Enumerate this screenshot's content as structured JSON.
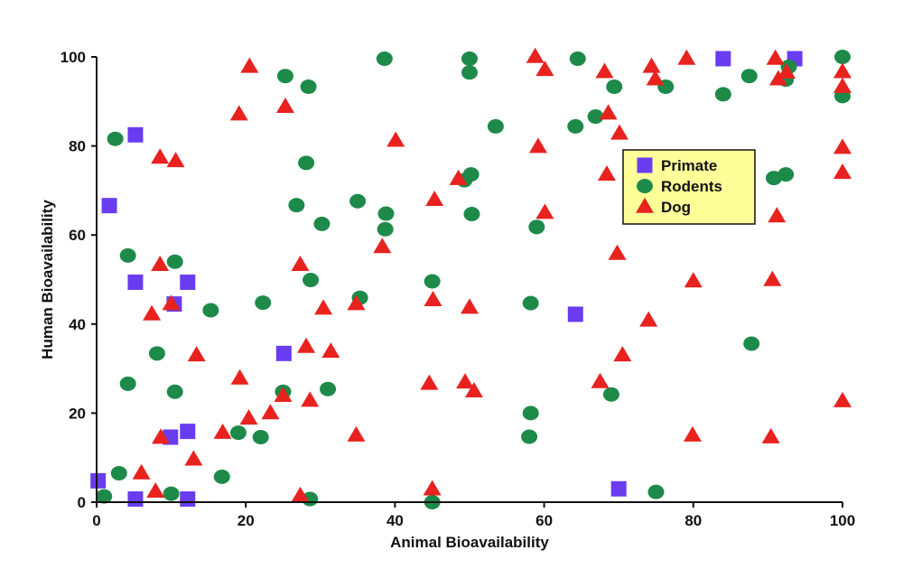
{
  "chart_data": {
    "type": "scatter",
    "xlabel": "Animal Bioavailability",
    "ylabel": "Human Bioavailability",
    "xlim": [
      0,
      100
    ],
    "ylim": [
      0,
      100
    ],
    "xticks": [
      0,
      20,
      40,
      60,
      80,
      100
    ],
    "yticks": [
      0,
      20,
      40,
      60,
      80,
      100
    ],
    "grid": false,
    "legend_position": "right",
    "series": [
      {
        "name": "Primate",
        "marker": "square",
        "color": "#6a3cf0",
        "points": [
          [
            0.2,
            4.8
          ],
          [
            1.7,
            66.6
          ],
          [
            5.2,
            0.7
          ],
          [
            5.2,
            82.5
          ],
          [
            5.2,
            49.4
          ],
          [
            10.4,
            44.5
          ],
          [
            9.9,
            14.6
          ],
          [
            12.2,
            49.4
          ],
          [
            12.2,
            15.9
          ],
          [
            12.2,
            0.7
          ],
          [
            25.1,
            33.4
          ],
          [
            64.2,
            42.2
          ],
          [
            70.0,
            3.0
          ],
          [
            84.0,
            99.6
          ],
          [
            93.6,
            99.6
          ]
        ]
      },
      {
        "name": "Rodents",
        "marker": "circle",
        "color": "#1d8a4a",
        "points": [
          [
            1.0,
            1.3
          ],
          [
            2.5,
            81.6
          ],
          [
            3.0,
            6.5
          ],
          [
            4.2,
            55.4
          ],
          [
            4.2,
            26.6
          ],
          [
            8.1,
            33.4
          ],
          [
            10.0,
            1.9
          ],
          [
            10.5,
            54.0
          ],
          [
            10.5,
            24.8
          ],
          [
            15.3,
            43.1
          ],
          [
            16.8,
            5.7
          ],
          [
            19.0,
            15.6
          ],
          [
            22.0,
            14.6
          ],
          [
            22.3,
            44.8
          ],
          [
            25.0,
            24.8
          ],
          [
            25.3,
            95.7
          ],
          [
            26.8,
            66.7
          ],
          [
            28.1,
            76.2
          ],
          [
            28.4,
            93.3
          ],
          [
            28.6,
            0.7
          ],
          [
            28.7,
            49.9
          ],
          [
            30.2,
            62.5
          ],
          [
            31.0,
            25.4
          ],
          [
            35.0,
            67.6
          ],
          [
            35.3,
            45.9
          ],
          [
            38.6,
            99.6
          ],
          [
            38.7,
            61.3
          ],
          [
            38.8,
            64.8
          ],
          [
            45.0,
            49.6
          ],
          [
            45.0,
            0.0
          ],
          [
            49.3,
            72.3
          ],
          [
            50.0,
            99.6
          ],
          [
            50.0,
            96.5
          ],
          [
            50.2,
            73.6
          ],
          [
            50.3,
            64.7
          ],
          [
            53.5,
            84.4
          ],
          [
            58.2,
            44.7
          ],
          [
            58.2,
            20.0
          ],
          [
            58.0,
            14.7
          ],
          [
            59.0,
            61.8
          ],
          [
            64.2,
            84.4
          ],
          [
            64.5,
            99.6
          ],
          [
            66.9,
            86.6
          ],
          [
            69.0,
            24.2
          ],
          [
            69.4,
            93.3
          ],
          [
            75.0,
            2.3
          ],
          [
            76.3,
            93.3
          ],
          [
            84.0,
            91.6
          ],
          [
            87.5,
            95.7
          ],
          [
            87.8,
            35.6
          ],
          [
            90.8,
            72.8
          ],
          [
            92.4,
            73.6
          ],
          [
            92.4,
            94.9
          ],
          [
            92.8,
            97.8
          ],
          [
            100.0,
            100.0
          ],
          [
            100.0,
            91.2
          ]
        ]
      },
      {
        "name": "Dog",
        "marker": "triangle",
        "color": "#e8221f",
        "points": [
          [
            6.0,
            6.5
          ],
          [
            7.9,
            2.4
          ],
          [
            7.4,
            42.2
          ],
          [
            8.5,
            77.4
          ],
          [
            8.5,
            53.3
          ],
          [
            8.6,
            14.5
          ],
          [
            10.0,
            44.5
          ],
          [
            10.6,
            76.6
          ],
          [
            13.0,
            9.6
          ],
          [
            13.4,
            33.0
          ],
          [
            16.9,
            15.6
          ],
          [
            19.1,
            87.1
          ],
          [
            19.2,
            27.8
          ],
          [
            20.4,
            18.8
          ],
          [
            20.5,
            97.8
          ],
          [
            23.3,
            20.0
          ],
          [
            25.0,
            23.9
          ],
          [
            25.3,
            88.8
          ],
          [
            27.3,
            1.4
          ],
          [
            27.3,
            53.3
          ],
          [
            28.1,
            34.9
          ],
          [
            28.6,
            22.8
          ],
          [
            30.4,
            43.5
          ],
          [
            31.4,
            33.8
          ],
          [
            34.8,
            44.5
          ],
          [
            34.8,
            15.0
          ],
          [
            38.3,
            57.3
          ],
          [
            40.1,
            81.2
          ],
          [
            44.6,
            26.6
          ],
          [
            45.0,
            2.9
          ],
          [
            45.1,
            45.4
          ],
          [
            45.3,
            67.9
          ],
          [
            48.5,
            72.6
          ],
          [
            49.4,
            26.9
          ],
          [
            50.0,
            43.7
          ],
          [
            50.6,
            24.9
          ],
          [
            58.8,
            100.0
          ],
          [
            59.2,
            79.8
          ],
          [
            60.1,
            97.1
          ],
          [
            60.1,
            65.0
          ],
          [
            67.5,
            27.0
          ],
          [
            68.1,
            96.6
          ],
          [
            68.4,
            73.6
          ],
          [
            68.6,
            87.3
          ],
          [
            69.8,
            55.8
          ],
          [
            70.1,
            82.8
          ],
          [
            70.5,
            33.0
          ],
          [
            74.0,
            40.8
          ],
          [
            74.4,
            97.8
          ],
          [
            74.9,
            95.0
          ],
          [
            79.1,
            99.6
          ],
          [
            79.9,
            15.0
          ],
          [
            80.0,
            49.6
          ],
          [
            90.4,
            14.6
          ],
          [
            90.6,
            49.9
          ],
          [
            91.0,
            99.6
          ],
          [
            91.2,
            64.2
          ],
          [
            91.4,
            95.0
          ],
          [
            92.5,
            96.5
          ],
          [
            100.0,
            96.6
          ],
          [
            100.0,
            93.3
          ],
          [
            100.0,
            79.6
          ],
          [
            100.0,
            74.0
          ],
          [
            100.0,
            22.7
          ]
        ]
      }
    ]
  }
}
